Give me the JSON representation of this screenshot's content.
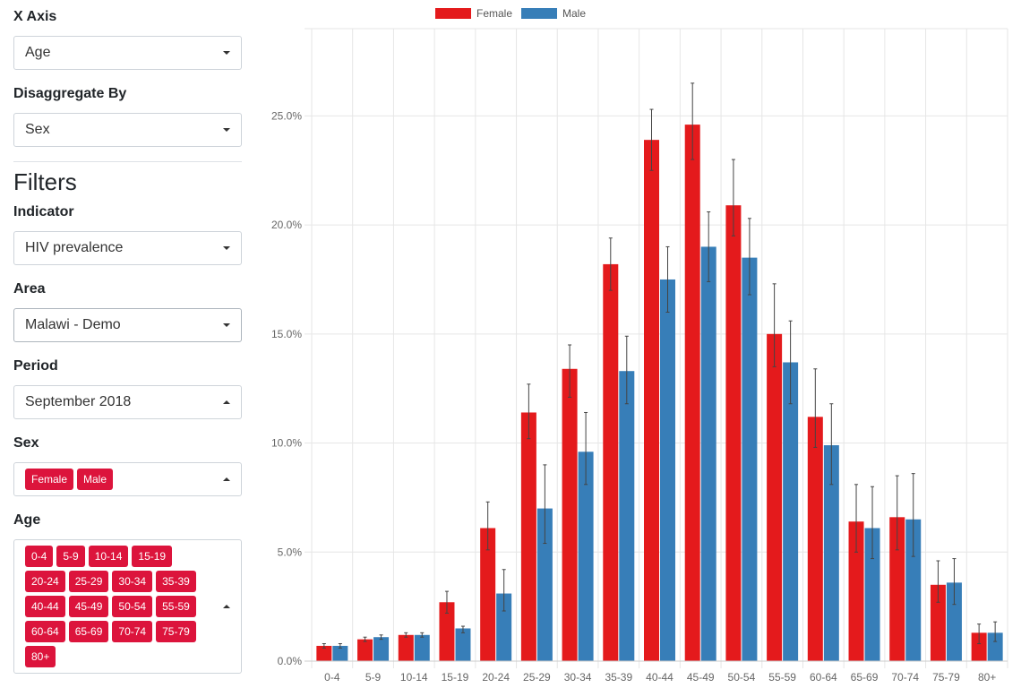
{
  "sidebar": {
    "x_axis": {
      "label": "X Axis",
      "value": "Age"
    },
    "disaggregate": {
      "label": "Disaggregate By",
      "value": "Sex"
    },
    "filters_title": "Filters",
    "indicator": {
      "label": "Indicator",
      "value": "HIV prevalence"
    },
    "area": {
      "label": "Area",
      "value": "Malawi - Demo"
    },
    "period": {
      "label": "Period",
      "value": "September 2018"
    },
    "sex": {
      "label": "Sex",
      "tags": [
        "Female",
        "Male"
      ]
    },
    "age": {
      "label": "Age",
      "tags": [
        "0-4",
        "5-9",
        "10-14",
        "15-19",
        "20-24",
        "25-29",
        "30-34",
        "35-39",
        "40-44",
        "45-49",
        "50-54",
        "55-59",
        "60-64",
        "65-69",
        "70-74",
        "75-79",
        "80+"
      ]
    }
  },
  "chart_data": {
    "type": "bar",
    "categories": [
      "0-4",
      "5-9",
      "10-14",
      "15-19",
      "20-24",
      "25-29",
      "30-34",
      "35-39",
      "40-44",
      "45-49",
      "50-54",
      "55-59",
      "60-64",
      "65-69",
      "70-74",
      "75-79",
      "80+"
    ],
    "series": [
      {
        "name": "Female",
        "color": "#e41a1c",
        "values": [
          0.7,
          1.0,
          1.2,
          2.7,
          6.1,
          11.4,
          13.4,
          18.2,
          23.9,
          24.6,
          20.9,
          15.0,
          11.2,
          6.4,
          6.6,
          3.5,
          1.3
        ],
        "lower": [
          0.6,
          0.9,
          1.1,
          2.2,
          5.1,
          10.2,
          12.1,
          17.0,
          22.5,
          23.0,
          19.5,
          13.5,
          9.8,
          5.0,
          5.1,
          2.7,
          0.8
        ],
        "upper": [
          0.8,
          1.1,
          1.3,
          3.2,
          7.3,
          12.7,
          14.5,
          19.4,
          25.3,
          26.5,
          23.0,
          17.3,
          13.4,
          8.1,
          8.5,
          4.6,
          1.7
        ]
      },
      {
        "name": "Male",
        "color": "#377eb8",
        "values": [
          0.7,
          1.1,
          1.2,
          1.5,
          3.1,
          7.0,
          9.6,
          13.3,
          17.5,
          19.0,
          18.5,
          13.7,
          9.9,
          6.1,
          6.5,
          3.6,
          1.3
        ],
        "lower": [
          0.6,
          1.0,
          1.1,
          1.3,
          2.3,
          5.4,
          8.1,
          11.8,
          16.0,
          17.4,
          16.8,
          11.8,
          8.1,
          4.7,
          4.8,
          2.6,
          0.9
        ],
        "upper": [
          0.8,
          1.2,
          1.3,
          1.6,
          4.2,
          9.0,
          11.4,
          14.9,
          19.0,
          20.6,
          20.3,
          15.6,
          11.8,
          8.0,
          8.6,
          4.7,
          1.8
        ]
      }
    ],
    "ylim": [
      0,
      29
    ],
    "yticks": [
      0,
      5,
      10,
      15,
      20,
      25
    ],
    "ytick_labels": [
      "0.0%",
      "5.0%",
      "10.0%",
      "15.0%",
      "20.0%",
      "25.0%"
    ],
    "grid": true,
    "legend_position": "top-center",
    "error_bars": true
  }
}
